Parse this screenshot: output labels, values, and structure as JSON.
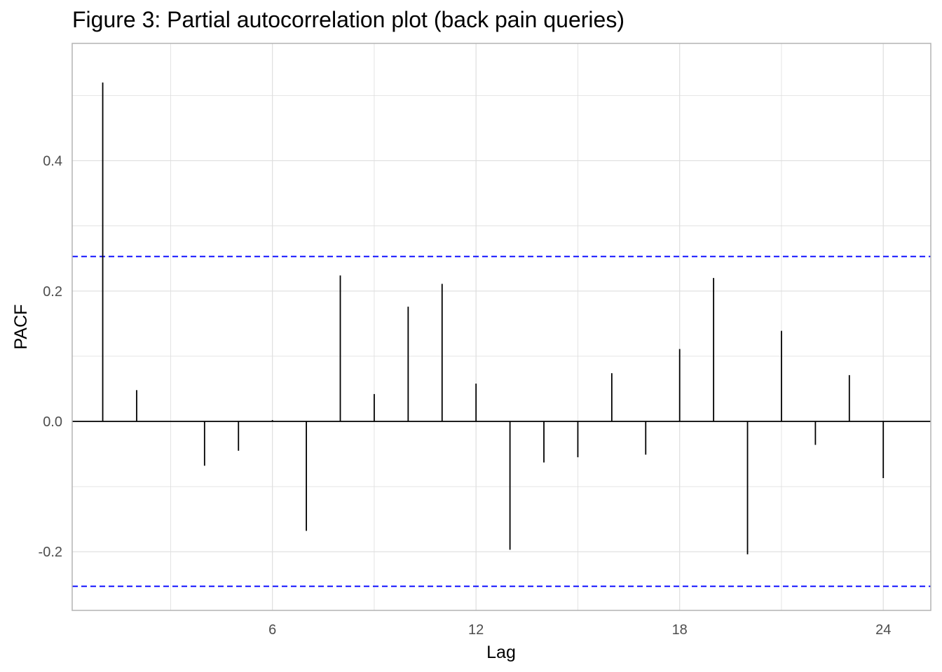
{
  "chart_data": {
    "type": "bar",
    "title": "Figure 3: Partial autocorrelation plot (back pain queries)",
    "xlabel": "Lag",
    "ylabel": "PACF",
    "xlim": [
      0.1,
      25.4
    ],
    "ylim": [
      -0.29,
      0.58
    ],
    "x_ticks": [
      6,
      12,
      18,
      24
    ],
    "y_ticks": [
      -0.2,
      0.0,
      0.2,
      0.4
    ],
    "y_tick_labels": [
      "-0.2",
      "0.0",
      "0.2",
      "0.4"
    ],
    "x_minor": [
      3,
      9,
      15,
      21
    ],
    "y_minor": [
      -0.1,
      0.1,
      0.3,
      0.5
    ],
    "grid": true,
    "significance_bound": 0.253,
    "colors": {
      "bars": "#000000",
      "bound": "#0000ff",
      "grid": "#dedede",
      "panel_border": "#b3b3b3"
    },
    "series": [
      {
        "x": [
          1,
          2,
          3,
          4,
          5,
          6,
          7,
          8,
          9,
          10,
          11,
          12,
          13,
          14,
          15,
          16,
          17,
          18,
          19,
          20,
          21,
          22,
          23,
          24
        ],
        "values": [
          0.52,
          0.048,
          0.0,
          -0.068,
          -0.045,
          0.002,
          -0.168,
          0.224,
          0.042,
          0.176,
          0.211,
          0.058,
          -0.197,
          -0.063,
          -0.055,
          0.074,
          -0.051,
          0.111,
          0.22,
          -0.204,
          0.139,
          -0.036,
          0.071,
          -0.087
        ]
      }
    ]
  }
}
